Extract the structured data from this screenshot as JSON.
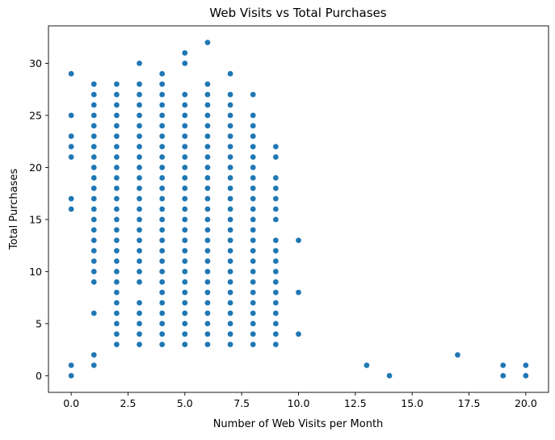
{
  "chart_data": {
    "type": "scatter",
    "title": "Web Visits vs Total Purchases",
    "xlabel": "Number of Web Visits per Month",
    "ylabel": "Total Purchases",
    "xlim": [
      -1,
      21
    ],
    "ylim": [
      -1.6,
      33.6
    ],
    "xticks": [
      0.0,
      2.5,
      5.0,
      7.5,
      10.0,
      12.5,
      15.0,
      17.5,
      20.0
    ],
    "xtick_labels": [
      "0.0",
      "2.5",
      "5.0",
      "7.5",
      "10.0",
      "12.5",
      "15.0",
      "17.5",
      "20.0"
    ],
    "yticks": [
      0,
      5,
      10,
      15,
      20,
      25,
      30
    ],
    "ytick_labels": [
      "0",
      "5",
      "10",
      "15",
      "20",
      "25",
      "30"
    ],
    "grid": false,
    "marker_color": "#1f77b4",
    "points_by_x": [
      {
        "x": 0,
        "y": [
          0,
          1,
          16,
          17,
          21,
          22,
          23,
          25,
          29
        ]
      },
      {
        "x": 1,
        "y": [
          1,
          2,
          6,
          9,
          10,
          11,
          12,
          13,
          14,
          15,
          16,
          17,
          18,
          19,
          20,
          21,
          22,
          23,
          24,
          25,
          26,
          27,
          28
        ]
      },
      {
        "x": 2,
        "y": [
          3,
          4,
          5,
          6,
          7,
          8,
          9,
          10,
          11,
          12,
          13,
          14,
          15,
          16,
          17,
          18,
          19,
          20,
          21,
          22,
          23,
          24,
          25,
          26,
          27,
          28
        ]
      },
      {
        "x": 3,
        "y": [
          3,
          4,
          5,
          6,
          7,
          9,
          10,
          11,
          12,
          13,
          14,
          15,
          16,
          17,
          18,
          19,
          20,
          21,
          22,
          23,
          24,
          25,
          26,
          27,
          28,
          30
        ]
      },
      {
        "x": 4,
        "y": [
          3,
          4,
          5,
          6,
          7,
          8,
          9,
          10,
          11,
          12,
          13,
          14,
          15,
          16,
          17,
          18,
          19,
          20,
          21,
          22,
          23,
          24,
          25,
          26,
          27,
          28,
          29
        ]
      },
      {
        "x": 5,
        "y": [
          3,
          4,
          5,
          6,
          7,
          8,
          9,
          10,
          11,
          12,
          13,
          14,
          15,
          16,
          17,
          18,
          19,
          20,
          21,
          22,
          23,
          24,
          25,
          26,
          27,
          30,
          31
        ]
      },
      {
        "x": 6,
        "y": [
          3,
          4,
          5,
          6,
          7,
          8,
          9,
          10,
          11,
          12,
          13,
          14,
          15,
          16,
          17,
          18,
          19,
          20,
          21,
          22,
          23,
          24,
          25,
          26,
          27,
          28,
          32
        ]
      },
      {
        "x": 7,
        "y": [
          3,
          4,
          5,
          6,
          7,
          8,
          9,
          10,
          11,
          12,
          13,
          14,
          15,
          16,
          17,
          18,
          19,
          20,
          21,
          22,
          23,
          24,
          25,
          26,
          27,
          29
        ]
      },
      {
        "x": 8,
        "y": [
          3,
          4,
          5,
          6,
          7,
          8,
          9,
          10,
          11,
          12,
          13,
          14,
          15,
          16,
          17,
          18,
          19,
          20,
          21,
          22,
          23,
          24,
          25,
          27
        ]
      },
      {
        "x": 9,
        "y": [
          3,
          4,
          5,
          6,
          7,
          8,
          9,
          10,
          11,
          12,
          13,
          15,
          16,
          17,
          18,
          19,
          21,
          22
        ]
      },
      {
        "x": 10,
        "y": [
          4,
          8,
          13
        ]
      },
      {
        "x": 13,
        "y": [
          1
        ]
      },
      {
        "x": 14,
        "y": [
          0
        ]
      },
      {
        "x": 17,
        "y": [
          2
        ]
      },
      {
        "x": 19,
        "y": [
          0,
          1
        ]
      },
      {
        "x": 20,
        "y": [
          0,
          1
        ]
      }
    ]
  }
}
